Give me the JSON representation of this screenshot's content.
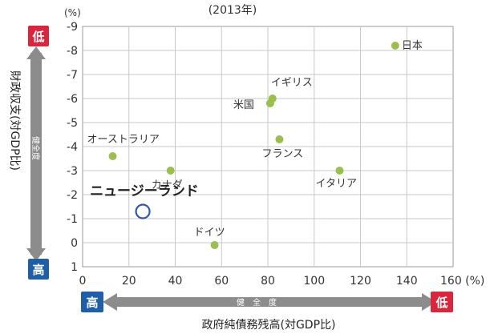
{
  "chart_data": {
    "type": "scatter",
    "subtitle": "(2013年)",
    "xlabel": "政府純債務残高(対GDP比)",
    "ylabel": "財政収支(対GDP比)",
    "x_unit": "160 (%)",
    "y_unit": "(%)",
    "xlim": [
      0,
      160
    ],
    "ylim": [
      1,
      -9
    ],
    "y_reversed": true,
    "x_ticks": [
      "0",
      "20",
      "40",
      "60",
      "80",
      "100",
      "120",
      "140"
    ],
    "y_ticks": [
      "-9",
      "-8",
      "-7",
      "-6",
      "-5",
      "-4",
      "-3",
      "-2",
      "-1",
      "0",
      "1"
    ],
    "grid": true,
    "points": [
      {
        "label": "日本",
        "x": 135,
        "y": -8.2
      },
      {
        "label": "イギリス",
        "x": 82,
        "y": -6.0
      },
      {
        "label": "米国",
        "x": 81,
        "y": -5.8
      },
      {
        "label": "フランス",
        "x": 85,
        "y": -4.3
      },
      {
        "label": "オーストラリア",
        "x": 13,
        "y": -3.6
      },
      {
        "label": "カナダ",
        "x": 38,
        "y": -3.0
      },
      {
        "label": "イタリア",
        "x": 111,
        "y": -3.0
      },
      {
        "label": "ドイツ",
        "x": 57,
        "y": 0.1
      },
      {
        "label": "ニュージーランド",
        "x": 26,
        "y": -1.3,
        "highlight": true
      }
    ],
    "y_axis_arrow": {
      "top": "低",
      "bottom": "高",
      "middle": "健全度"
    },
    "x_axis_arrow": {
      "left": "高",
      "right": "低",
      "middle": "健全度"
    },
    "colors": {
      "point": "#9bbf4e",
      "highlight": "#2f5aa8",
      "low_badge": "#d7263d",
      "high_badge": "#1f5fa8",
      "arrow": "#8c8c8c",
      "grid": "#c8c8c8"
    }
  }
}
